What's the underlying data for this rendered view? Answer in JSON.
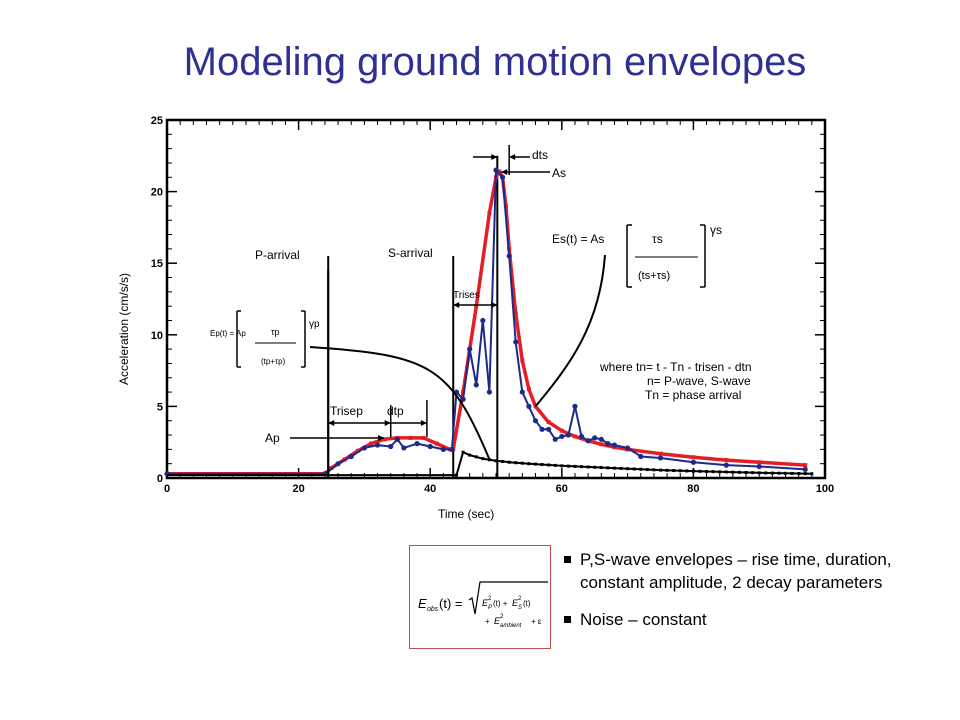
{
  "slide": {
    "title": "Modeling ground motion envelopes",
    "bullets": [
      "P,S-wave envelopes – rise time, duration, constant amplitude, 2 decay parameters",
      "Noise – constant"
    ],
    "equation_image_label": "E_obs(t) = sqrt(E_P^2(t) + E_S^2(t) + E_ambient^2) + ε"
  },
  "chart_data": {
    "type": "line",
    "xlabel": "Time (sec)",
    "ylabel": "Acceleration (cm/s/s)",
    "xlim": [
      0,
      100
    ],
    "ylim": [
      0,
      25
    ],
    "x_ticks": [
      0,
      20,
      40,
      60,
      80,
      100
    ],
    "y_ticks": [
      0,
      5,
      10,
      15,
      20,
      25
    ],
    "colors": {
      "model": "#e41e25",
      "observed": "#1c2a8c",
      "noise": "#000000"
    },
    "series": [
      {
        "key": "model",
        "x": [
          0,
          24,
          25,
          27,
          29,
          31,
          33,
          35,
          37,
          39,
          41,
          43,
          43.5,
          45,
          47,
          49,
          50,
          50.5,
          51,
          51.5,
          52,
          53,
          54,
          55,
          56,
          58,
          60,
          62,
          64,
          66,
          68,
          70,
          75,
          80,
          85,
          90,
          97
        ],
        "values": [
          0.3,
          0.3,
          0.7,
          1.3,
          1.9,
          2.4,
          2.7,
          2.8,
          2.8,
          2.8,
          2.4,
          2.0,
          2.0,
          6.0,
          12.0,
          18.5,
          21.0,
          21.4,
          21.0,
          19.0,
          16.0,
          11.5,
          8.2,
          6.2,
          5.0,
          3.9,
          3.3,
          2.9,
          2.6,
          2.35,
          2.15,
          2.0,
          1.7,
          1.45,
          1.25,
          1.1,
          0.9
        ]
      },
      {
        "key": "observed",
        "x": [
          0,
          24,
          26,
          28,
          30,
          32,
          34,
          35,
          36,
          38,
          40,
          42,
          43.3,
          44,
          45,
          46,
          47,
          48,
          49,
          50,
          51,
          52,
          53,
          54,
          55,
          56,
          57,
          58,
          59,
          60,
          61,
          62,
          63,
          64,
          65,
          66,
          67,
          68,
          70,
          72,
          75,
          80,
          85,
          90,
          97
        ],
        "values": [
          0.3,
          0.3,
          1.0,
          1.5,
          2.1,
          2.3,
          2.2,
          2.7,
          2.1,
          2.4,
          2.2,
          2.0,
          2.0,
          6.0,
          5.5,
          9.0,
          6.5,
          11.0,
          6.0,
          21.5,
          21.0,
          15.5,
          9.5,
          6.0,
          5.0,
          4.0,
          3.4,
          3.4,
          2.7,
          2.9,
          3.0,
          5.0,
          2.9,
          2.6,
          2.8,
          2.7,
          2.4,
          2.3,
          2.1,
          1.5,
          1.4,
          1.1,
          0.9,
          0.8,
          0.6
        ]
      },
      {
        "key": "noise",
        "x": [
          0,
          44,
          45,
          46,
          48,
          50,
          52,
          55,
          60,
          65,
          70,
          75,
          80,
          85,
          90,
          95,
          98
        ],
        "values": [
          0.2,
          0.2,
          1.8,
          1.6,
          1.35,
          1.2,
          1.1,
          1.0,
          0.85,
          0.75,
          0.65,
          0.55,
          0.48,
          0.42,
          0.36,
          0.32,
          0.3
        ]
      }
    ],
    "vlines": [
      {
        "x": 24.5,
        "ymax": 15.5
      },
      {
        "x": 43.5,
        "ymax": 15.5
      },
      {
        "x": 50.2,
        "ymax": 22.5
      }
    ],
    "annotations": {
      "p_arrival": "P-arrival",
      "s_arrival": "S-arrival",
      "trisep": "Trisep",
      "dtp": "dtp",
      "ap": "Ap",
      "trises": "Trises",
      "dts": "dts",
      "as": "As",
      "ep_lhs": "Ep(t) = Ap",
      "ep_num": "τp",
      "ep_den": "(tp+τp)",
      "ep_exp": "γp",
      "es_lhs": "Es(t) = As",
      "es_num": "τs",
      "es_den": "(ts+τs)",
      "es_exp": "γs",
      "where_1": "where tn= t - Tn - trisen - dtn",
      "where_2": "n= P-wave, S-wave",
      "where_3": "Tn = phase arrival"
    }
  }
}
